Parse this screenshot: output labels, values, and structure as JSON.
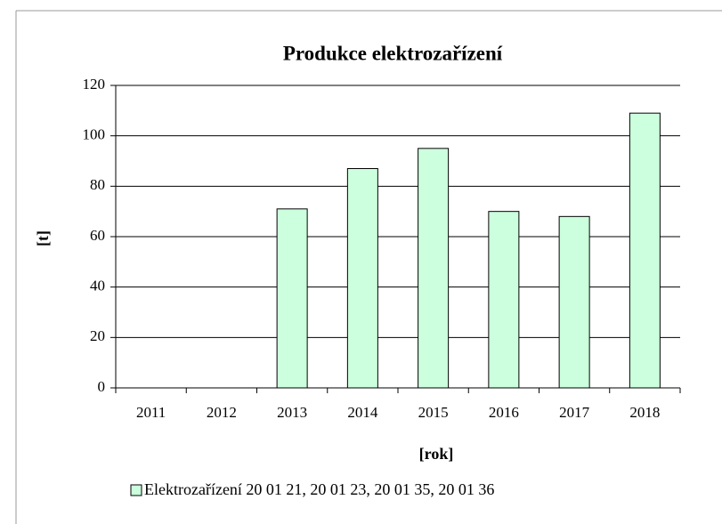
{
  "chart_data": {
    "type": "bar",
    "title": "Produkce elektrozařízení",
    "x_label": "[rok]",
    "y_label": "[t]",
    "categories": [
      "2011",
      "2012",
      "2013",
      "2014",
      "2015",
      "2016",
      "2017",
      "2018"
    ],
    "series": [
      {
        "name": "Elektrozařízení 20 01 21, 20 01 23, 20 01 35, 20 01 36",
        "color": "#ccffdd",
        "values": [
          0,
          0,
          71,
          87,
          95,
          70,
          68,
          109
        ]
      }
    ],
    "ylim": [
      0,
      120
    ],
    "yticks": [
      0,
      20,
      40,
      60,
      80,
      100,
      120
    ],
    "grid": true,
    "legend": "bottom"
  }
}
